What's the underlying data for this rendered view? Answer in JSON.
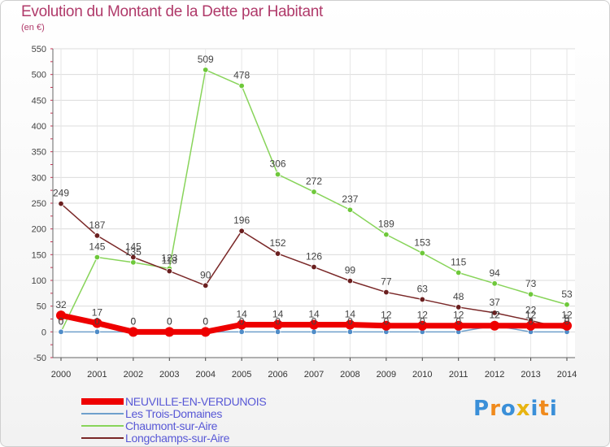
{
  "title": "Evolution du Montant de la Dette par Habitant",
  "unit": "(en €)",
  "logo": {
    "text": "Proxiti",
    "colors": [
      "#3a8fd8",
      "#f08a1c",
      "#3a8fd8",
      "#e8b410",
      "#3a8fd8",
      "#f08a1c",
      "#3a8fd8"
    ]
  },
  "chart_data": {
    "type": "line",
    "x": [
      "2000",
      "2001",
      "2002",
      "2003",
      "2004",
      "2005",
      "2006",
      "2007",
      "2008",
      "2009",
      "2010",
      "2011",
      "2012",
      "2013",
      "2014"
    ],
    "ylim": [
      -50,
      550
    ],
    "yticks": [
      -50,
      0,
      50,
      100,
      150,
      200,
      250,
      300,
      350,
      400,
      450,
      500,
      550
    ],
    "grid": true,
    "legend_position": "bottom-left",
    "series": [
      {
        "name": "Chaumont-sur-Aire",
        "color": "#88d45a",
        "marker": "#6ec83a",
        "width": 1.5,
        "values": [
          0,
          145,
          135,
          123,
          509,
          478,
          306,
          272,
          237,
          189,
          153,
          115,
          94,
          73,
          53
        ],
        "labels": [
          "0",
          "145",
          "135",
          "123",
          "509",
          "478",
          "306",
          "272",
          "237",
          "189",
          "153",
          "115",
          "94",
          "73",
          "53"
        ]
      },
      {
        "name": "Longchamps-sur-Aire",
        "color": "#7a2828",
        "marker": "#6a1f1f",
        "width": 1.5,
        "values": [
          249,
          187,
          145,
          118,
          90,
          196,
          152,
          126,
          99,
          77,
          63,
          48,
          37,
          22,
          5
        ],
        "labels": [
          "249",
          "187",
          "145",
          "118",
          "90",
          "196",
          "152",
          "126",
          "99",
          "77",
          "63",
          "48",
          "37",
          "22",
          "5"
        ]
      },
      {
        "name": "Les Trois-Domaines",
        "color": "#6fa0cc",
        "marker": "#4f8cc8",
        "width": 1.5,
        "values": [
          0,
          0,
          0,
          0,
          0,
          0,
          0,
          0,
          0,
          0,
          0,
          0,
          12,
          0,
          0
        ],
        "labels": [
          "0",
          "0",
          "0",
          "0",
          "0",
          "0",
          "0",
          "0",
          "0",
          "0",
          "0",
          "0",
          "12",
          "0",
          "0"
        ]
      },
      {
        "name": "NEUVILLE-EN-VERDUNOIS",
        "color": "#ee0000",
        "marker": "#ee0000",
        "width": 7,
        "values": [
          32,
          17,
          0,
          0,
          0,
          14,
          14,
          14,
          14,
          12,
          12,
          12,
          12,
          12,
          12
        ],
        "labels": [
          "32",
          "17",
          "0",
          "0",
          "0",
          "14",
          "14",
          "14",
          "14",
          "12",
          "12",
          "12",
          "12",
          "12",
          "12"
        ]
      }
    ]
  }
}
